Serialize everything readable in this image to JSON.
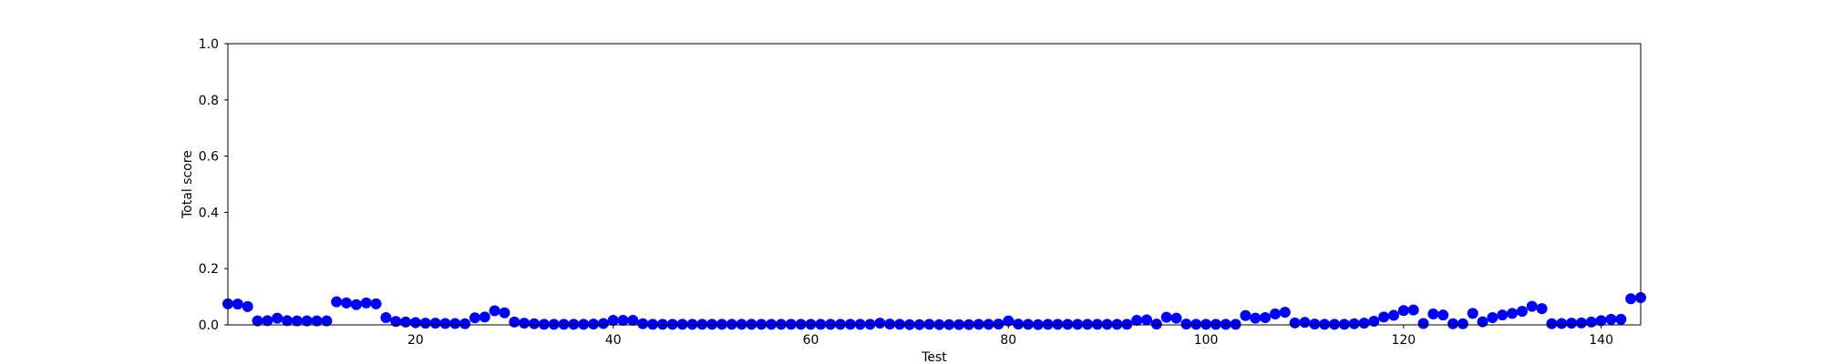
{
  "chart_data": {
    "type": "scatter",
    "title": "",
    "xlabel": "Test",
    "ylabel": "Total score",
    "xlim": [
      1,
      144
    ],
    "ylim": [
      0.0,
      1.0
    ],
    "xticks": [
      20,
      40,
      60,
      80,
      100,
      120,
      140
    ],
    "yticks": [
      "0.0",
      "0.2",
      "0.4",
      "0.6",
      "0.8",
      "1.0"
    ],
    "grid": false,
    "marker_color": "#0000ff",
    "series": [
      {
        "x": [
          1,
          2,
          3,
          4,
          5,
          6,
          7,
          8,
          9,
          10,
          11,
          12,
          13,
          14,
          15,
          16,
          17,
          18,
          19,
          20,
          21,
          22,
          23,
          24,
          25,
          26,
          27,
          28,
          29,
          30,
          31,
          32,
          33,
          34,
          35,
          36,
          37,
          38,
          39,
          40,
          41,
          42,
          43,
          44,
          45,
          46,
          47,
          48,
          49,
          50,
          51,
          52,
          53,
          54,
          55,
          56,
          57,
          58,
          59,
          60,
          61,
          62,
          63,
          64,
          65,
          66,
          67,
          68,
          69,
          70,
          71,
          72,
          73,
          74,
          75,
          76,
          77,
          78,
          79,
          80,
          81,
          82,
          83,
          84,
          85,
          86,
          87,
          88,
          89,
          90,
          91,
          92,
          93,
          94,
          95,
          96,
          97,
          98,
          99,
          100,
          101,
          102,
          103,
          104,
          105,
          106,
          107,
          108,
          109,
          110,
          111,
          112,
          113,
          114,
          115,
          116,
          117,
          118,
          119,
          120,
          121,
          122,
          123,
          124,
          125,
          126,
          127,
          128,
          129,
          130,
          131,
          132,
          133,
          134,
          135,
          136,
          137,
          138,
          139,
          140,
          141,
          142,
          143,
          144
        ],
        "y": [
          0.075,
          0.074,
          0.065,
          0.014,
          0.015,
          0.024,
          0.015,
          0.014,
          0.014,
          0.014,
          0.014,
          0.082,
          0.078,
          0.072,
          0.078,
          0.075,
          0.026,
          0.012,
          0.01,
          0.008,
          0.006,
          0.006,
          0.005,
          0.005,
          0.004,
          0.025,
          0.028,
          0.05,
          0.043,
          0.01,
          0.006,
          0.004,
          0.002,
          0.002,
          0.002,
          0.002,
          0.002,
          0.003,
          0.005,
          0.016,
          0.016,
          0.016,
          0.004,
          0.002,
          0.002,
          0.002,
          0.002,
          0.002,
          0.002,
          0.002,
          0.002,
          0.002,
          0.002,
          0.002,
          0.002,
          0.002,
          0.002,
          0.002,
          0.002,
          0.002,
          0.002,
          0.002,
          0.002,
          0.002,
          0.002,
          0.002,
          0.006,
          0.003,
          0.002,
          0.001,
          0.001,
          0.002,
          0.001,
          0.001,
          0.001,
          0.001,
          0.002,
          0.002,
          0.003,
          0.014,
          0.003,
          0.002,
          0.001,
          0.002,
          0.002,
          0.002,
          0.002,
          0.002,
          0.002,
          0.002,
          0.002,
          0.002,
          0.016,
          0.018,
          0.003,
          0.027,
          0.024,
          0.003,
          0.002,
          0.002,
          0.002,
          0.002,
          0.002,
          0.033,
          0.024,
          0.026,
          0.039,
          0.045,
          0.007,
          0.009,
          0.003,
          0.002,
          0.002,
          0.002,
          0.004,
          0.006,
          0.013,
          0.028,
          0.034,
          0.051,
          0.053,
          0.005,
          0.039,
          0.035,
          0.004,
          0.004,
          0.041,
          0.011,
          0.026,
          0.035,
          0.041,
          0.048,
          0.066,
          0.058,
          0.004,
          0.005,
          0.006,
          0.007,
          0.01,
          0.015,
          0.02,
          0.02,
          0.093,
          0.097
        ]
      }
    ]
  }
}
